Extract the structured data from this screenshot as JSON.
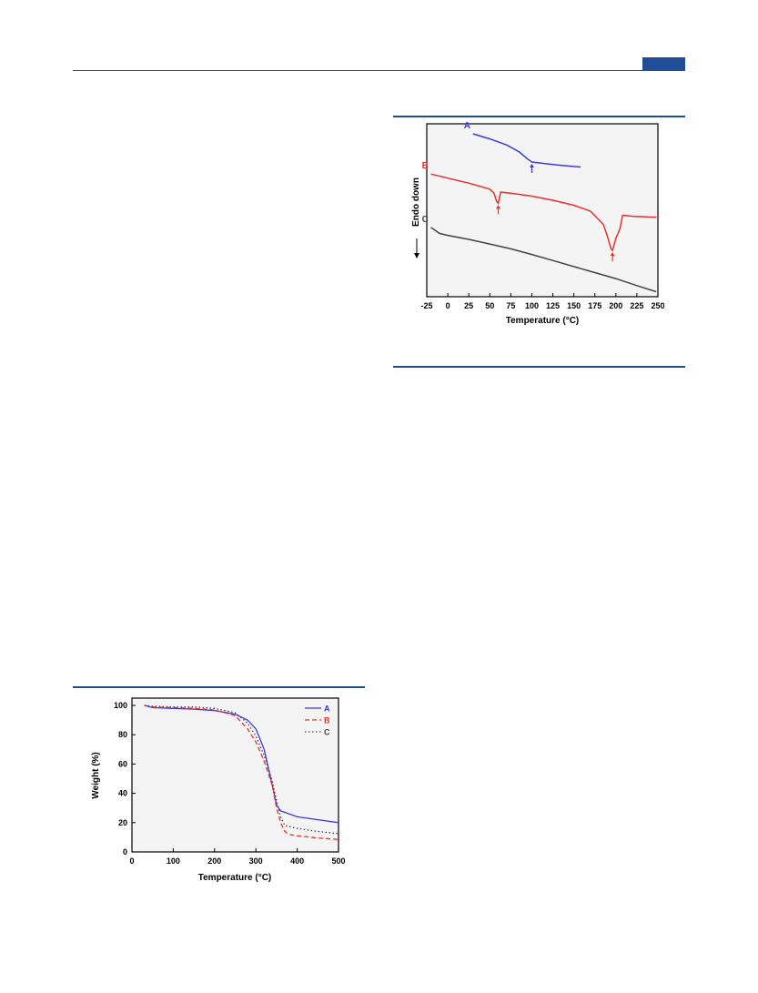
{
  "colors": {
    "rule": "#1f4e96",
    "seriesA": "#3a3adf",
    "seriesB": "#e8302c",
    "seriesC": "#444444",
    "frame": "#000000",
    "plot_bg": "#f4f4f4"
  },
  "chart_data": [
    {
      "type": "line",
      "ylabel": "Endo down",
      "xlabel": "Temperature (°C)",
      "xlim": [
        -25,
        250
      ],
      "x_ticks": [
        "-25",
        "0",
        "25",
        "50",
        "75",
        "100",
        "125",
        "150",
        "175",
        "200",
        "225",
        "250"
      ],
      "y_ticks_visible": false,
      "grid": false,
      "series": [
        {
          "name": "A",
          "x": [
            30,
            50,
            70,
            85,
            95,
            100,
            110,
            130,
            158
          ],
          "y": [
            6.1,
            5.85,
            5.55,
            5.2,
            4.85,
            4.7,
            4.65,
            4.55,
            4.45
          ]
        },
        {
          "name": "B",
          "x": [
            -20,
            0,
            25,
            50,
            55,
            58,
            60,
            63,
            75,
            100,
            125,
            150,
            170,
            185,
            190,
            194,
            196,
            200,
            205,
            208,
            220,
            248
          ],
          "y": [
            4.1,
            3.9,
            3.65,
            3.35,
            3.15,
            2.75,
            2.65,
            3.2,
            3.15,
            3.0,
            2.8,
            2.55,
            2.25,
            1.6,
            1.0,
            0.4,
            0.3,
            0.9,
            1.4,
            2.05,
            2.0,
            1.95
          ]
        },
        {
          "name": "C",
          "x": [
            -20,
            -10,
            0,
            25,
            50,
            75,
            100,
            125,
            150,
            175,
            200,
            225,
            248
          ],
          "y": [
            1.45,
            1.15,
            1.05,
            0.85,
            0.62,
            0.38,
            0.1,
            -0.2,
            -0.5,
            -0.8,
            -1.1,
            -1.45,
            -1.75
          ]
        }
      ],
      "series_labels": [
        "A",
        "B",
        "C"
      ],
      "arrows": [
        {
          "series": "A",
          "x": 100
        },
        {
          "series": "B",
          "x": 60
        },
        {
          "series": "B",
          "x": 196
        }
      ],
      "ylim": [
        -2.0,
        6.6
      ]
    },
    {
      "type": "line",
      "xlabel": "Temperature (°C)",
      "ylabel": "Weight (%)",
      "xlim": [
        0,
        500
      ],
      "ylim": [
        0,
        105
      ],
      "x_ticks": [
        0,
        100,
        200,
        300,
        400,
        500
      ],
      "y_ticks": [
        0,
        20,
        40,
        60,
        80,
        100
      ],
      "grid": false,
      "legend": "top-right",
      "series": [
        {
          "name": "A",
          "style": "solid",
          "x": [
            30,
            50,
            100,
            150,
            200,
            250,
            280,
            300,
            320,
            340,
            350,
            360,
            370,
            400,
            450,
            500
          ],
          "y": [
            100,
            98.5,
            98,
            97.5,
            96.5,
            94,
            90,
            84,
            70,
            45,
            32,
            28,
            27,
            24,
            22,
            20
          ]
        },
        {
          "name": "B",
          "style": "dashed",
          "x": [
            30,
            50,
            100,
            150,
            200,
            250,
            280,
            300,
            320,
            340,
            350,
            360,
            370,
            380,
            400,
            450,
            500
          ],
          "y": [
            100,
            99,
            98.5,
            98,
            97,
            93,
            84,
            75,
            62,
            45,
            30,
            20,
            14,
            12,
            11,
            9.5,
            8.5
          ]
        },
        {
          "name": "C",
          "style": "dotted",
          "x": [
            30,
            50,
            100,
            150,
            200,
            250,
            280,
            300,
            320,
            340,
            350,
            360,
            370,
            400,
            450,
            500
          ],
          "y": [
            100,
            99.5,
            99,
            99,
            98,
            95,
            88,
            79,
            66,
            48,
            35,
            24,
            18,
            16,
            14,
            12.5
          ]
        }
      ]
    }
  ]
}
